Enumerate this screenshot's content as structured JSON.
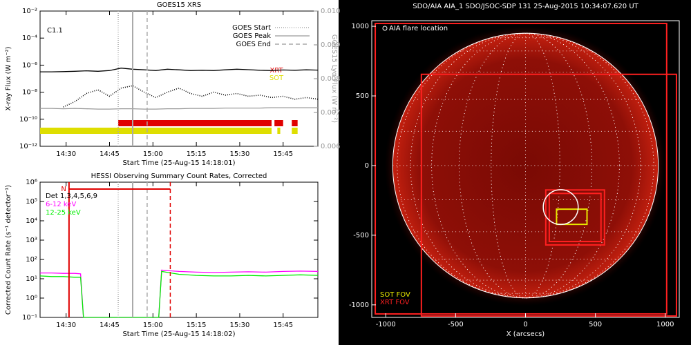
{
  "chart_data": [
    {
      "type": "line",
      "title": "GOES15 XRS",
      "xlabel": "Start Time (25-Aug-15 14:18:01)",
      "ylabel": "X-ray Flux (W m⁻²)",
      "y2label": "GOES15 Lyα Flux (W m⁻²)",
      "annotation": "C1.1",
      "log_y": true,
      "xlim": [
        "14:21",
        "15:57"
      ],
      "xticks": [
        "14:30",
        "14:45",
        "15:00",
        "15:15",
        "15:30",
        "15:45"
      ],
      "ylim": [
        1e-12,
        0.01
      ],
      "yticks": [
        {
          "value": 0.01,
          "label": "10⁻²"
        },
        {
          "value": 0.0001,
          "label": "10⁻⁴"
        },
        {
          "value": 1e-06,
          "label": "10⁻⁶"
        },
        {
          "value": 1e-08,
          "label": "10⁻⁸"
        },
        {
          "value": 1e-10,
          "label": "10⁻¹⁰"
        },
        {
          "value": 1e-12,
          "label": "10⁻¹²"
        }
      ],
      "y2lim": [
        0.006,
        0.01
      ],
      "y2ticks": [
        0.006,
        0.007,
        0.008,
        0.009,
        {
          "value": 0.01,
          "label": "0.010"
        }
      ],
      "x": [
        "14:21",
        "14:25",
        "14:29",
        "14:33",
        "14:37",
        "14:41",
        "14:45",
        "14:49",
        "14:53",
        "14:57",
        "15:01",
        "15:05",
        "15:09",
        "15:13",
        "15:17",
        "15:21",
        "15:25",
        "15:29",
        "15:33",
        "15:37",
        "15:41",
        "15:45",
        "15:49",
        "15:53",
        "15:57"
      ],
      "series": [
        {
          "color": "#000000",
          "style": "solid",
          "values": [
            3.2e-07,
            3.2e-07,
            3.3e-07,
            3.5e-07,
            3.8e-07,
            3.5e-07,
            4e-07,
            6e-07,
            5e-07,
            4.5e-07,
            4e-07,
            5e-07,
            4.5e-07,
            4e-07,
            4.2e-07,
            4e-07,
            4.5e-07,
            5e-07,
            4.6e-07,
            4.2e-07,
            4e-07,
            4.4e-07,
            4.2e-07,
            4.5e-07,
            4.3e-07
          ]
        },
        {
          "color": "#000000",
          "style": "dotted",
          "values": [
            null,
            null,
            8e-10,
            2e-09,
            8e-09,
            1.5e-08,
            5e-09,
            2e-08,
            3e-08,
            1e-08,
            4e-09,
            1e-08,
            2e-08,
            8e-09,
            5e-09,
            1e-08,
            6e-09,
            8e-09,
            5e-09,
            6e-09,
            4e-09,
            5e-09,
            3e-09,
            4e-09,
            3e-09
          ]
        },
        {
          "color": "#999999",
          "style": "solid",
          "axis": "y2",
          "values": [
            0.00712,
            0.00712,
            0.00711,
            0.00712,
            0.00711,
            0.0071,
            0.0071,
            0.00711,
            0.00711,
            0.0071,
            0.0071,
            0.00711,
            0.00711,
            0.00712,
            0.00712,
            0.00712,
            0.00713,
            0.00713,
            0.00713,
            0.00713,
            0.00714,
            0.00714,
            0.00714,
            0.00714,
            0.00714
          ]
        }
      ],
      "markers": [
        {
          "label": "GOES Start",
          "x": "14:48",
          "style": "dotted",
          "color": "#aaaaaa"
        },
        {
          "label": "GOES Peak",
          "x": "14:53",
          "style": "solid",
          "color": "#aaaaaa"
        },
        {
          "label": "GOES End",
          "x": "14:58",
          "style": "dashed",
          "color": "#aaaaaa"
        }
      ],
      "coverage": [
        {
          "name": "XRT",
          "color": "#e00000",
          "intervals": [
            [
              "14:48",
              "15:41"
            ],
            [
              "15:42",
              "15:45"
            ],
            [
              "15:48",
              "15:50"
            ]
          ]
        },
        {
          "name": "SOT",
          "color": "#dede00",
          "intervals": [
            [
              "14:21",
              "15:41"
            ],
            [
              "15:43",
              "15:44"
            ],
            [
              "15:48",
              "15:50"
            ]
          ]
        }
      ]
    },
    {
      "type": "line",
      "title": "HESSI Observing Summary Count Rates, Corrected",
      "xlabel": "Start Time (25-Aug-15 14:18:02)",
      "ylabel": "Corrected Count Rate (s⁻¹ detector⁻¹)",
      "legend_title": "Det 1,3,4,5,6,9",
      "log_y": true,
      "xlim": [
        "14:21",
        "15:57"
      ],
      "xticks": [
        "14:30",
        "14:45",
        "15:00",
        "15:15",
        "15:30",
        "15:45"
      ],
      "ylim": [
        0.1,
        1000000
      ],
      "yticks": [
        {
          "value": 0.1,
          "label": "10⁻¹"
        },
        {
          "value": 1,
          "label": "10⁰"
        },
        {
          "value": 10,
          "label": "10¹"
        },
        {
          "value": 100,
          "label": "10²"
        },
        {
          "value": 1000,
          "label": "10³"
        },
        {
          "value": 10000,
          "label": "10⁴"
        },
        {
          "value": 100000,
          "label": "10⁵"
        },
        {
          "value": 1000000,
          "label": "10⁶"
        }
      ],
      "x": [
        "14:21",
        "14:25",
        "14:29",
        "14:33",
        "14:35",
        "14:36",
        "14:45",
        "14:55",
        "15:02",
        "15:03",
        "15:09",
        "15:15",
        "15:21",
        "15:27",
        "15:33",
        "15:39",
        "15:45",
        "15:51",
        "15:57"
      ],
      "series": [
        {
          "name": "6-12 keV",
          "color": "#ff00ff",
          "style": "solid",
          "values": [
            20,
            20,
            19,
            19,
            18,
            0.1,
            0.1,
            0.1,
            0.1,
            28,
            24,
            22,
            21,
            22,
            23,
            22,
            24,
            25,
            24
          ]
        },
        {
          "name": "12-25 keV",
          "color": "#00ee00",
          "style": "solid",
          "values": [
            14,
            13,
            13,
            12,
            12,
            0.1,
            0.1,
            0.1,
            0.1,
            24,
            17,
            15,
            14,
            14,
            15,
            14,
            15,
            16,
            15
          ]
        }
      ],
      "markers": [
        {
          "x": "14:48",
          "style": "dotted",
          "color": "#aaaaaa"
        },
        {
          "x": "14:53",
          "style": "solid",
          "color": "#aaaaaa"
        },
        {
          "x": "14:58",
          "style": "dashed",
          "color": "#aaaaaa"
        },
        {
          "x": "14:31",
          "style": "solid",
          "color": "#e00000"
        },
        {
          "x": "15:06",
          "style": "dashed",
          "color": "#e00000"
        }
      ],
      "flag": {
        "label": "N",
        "start": "14:31",
        "end": "15:06",
        "color": "#e00000"
      }
    },
    {
      "type": "image",
      "title": "SDO/AIA AIA_1 SDO/JSOC-SDP 131 25-Aug-2015 10:34:07.620 UT",
      "xlabel": "X (arcsecs)",
      "xlim": [
        -1100,
        1100
      ],
      "ylim": [
        -1090,
        1040
      ],
      "xticks": [
        -1000,
        -500,
        0,
        500,
        1000
      ],
      "yticks": [
        -1000,
        -500,
        0,
        500,
        1000
      ],
      "disk_radius": 950,
      "flare": {
        "label": "AIA flare location",
        "x": 252,
        "y": -298,
        "r": 125,
        "color": "#ffffff"
      },
      "fovs": [
        {
          "label": "XRT FOV",
          "color": "#ff2020",
          "boxes": [
            [
              -1075,
              -1065,
              1010,
              1020
            ],
            [
              -745,
              -1080,
              1080,
              655
            ],
            [
              145,
              -570,
              565,
              -175
            ],
            [
              170,
              -545,
              540,
              -200
            ]
          ]
        },
        {
          "label": "SOT FOV",
          "color": "#e8e800",
          "boxes": [
            [
              222,
              -422,
              440,
              -313
            ]
          ]
        }
      ]
    }
  ]
}
